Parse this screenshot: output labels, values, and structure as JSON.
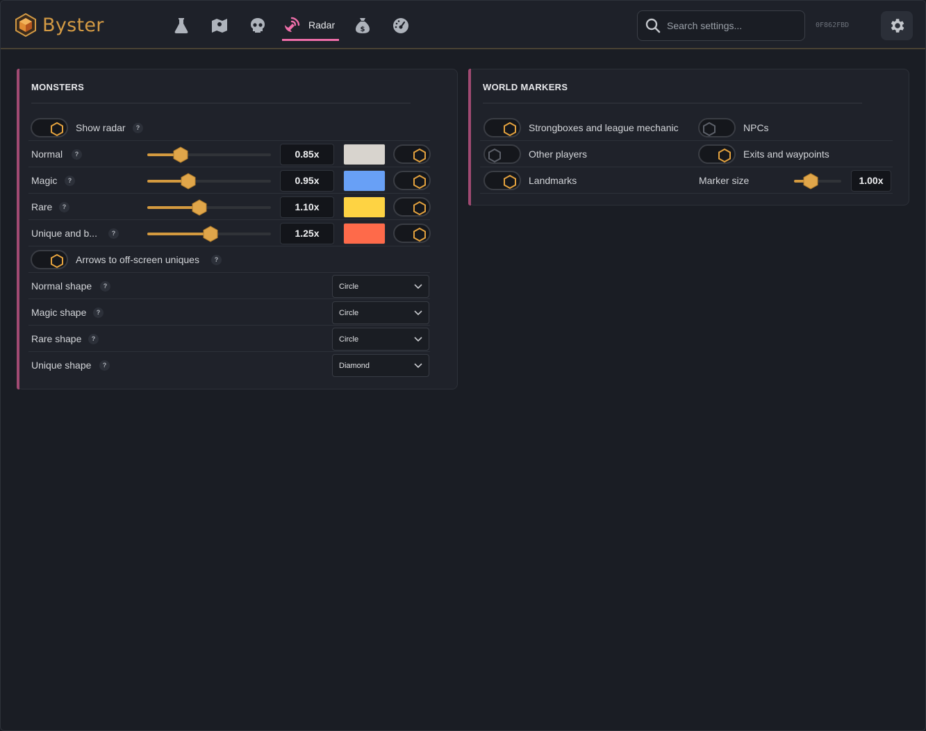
{
  "app": {
    "name": "Byster",
    "hwid": "0F862FBD"
  },
  "nav": {
    "items": [
      {
        "icon": "flask-icon",
        "label": ""
      },
      {
        "icon": "map-icon",
        "label": ""
      },
      {
        "icon": "skull-icon",
        "label": ""
      },
      {
        "icon": "radar-icon",
        "label": "Radar",
        "active": true
      },
      {
        "icon": "money-bag-icon",
        "label": ""
      },
      {
        "icon": "gauge-icon",
        "label": ""
      }
    ],
    "active_label": "Radar"
  },
  "search": {
    "placeholder": "Search settings..."
  },
  "colors": {
    "accent": "#d49a3f",
    "nav_active": "#ee6ea9",
    "panel_bar": "#a04a72"
  },
  "monsters": {
    "title": "MONSTERS",
    "show_radar": {
      "label": "Show radar",
      "enabled": true
    },
    "rarities": [
      {
        "label": "Normal",
        "scale": "0.85x",
        "slider_fraction": 0.27,
        "color": "#d8d4ce",
        "enabled": true
      },
      {
        "label": "Magic",
        "scale": "0.95x",
        "slider_fraction": 0.33,
        "color": "#68a0f6",
        "enabled": true
      },
      {
        "label": "Rare",
        "scale": "1.10x",
        "slider_fraction": 0.42,
        "color": "#fed343",
        "enabled": true
      },
      {
        "label": "Unique and b...",
        "scale": "1.25x",
        "slider_fraction": 0.51,
        "color": "#fe6a4a",
        "enabled": true
      }
    ],
    "arrows": {
      "label": "Arrows to off-screen uniques",
      "enabled": true
    },
    "shapes": [
      {
        "label": "Normal shape",
        "value": "Circle"
      },
      {
        "label": "Magic shape",
        "value": "Circle"
      },
      {
        "label": "Rare shape",
        "value": "Circle"
      },
      {
        "label": "Unique shape",
        "value": "Diamond"
      }
    ]
  },
  "world_markers": {
    "title": "WORLD MARKERS",
    "strongboxes": {
      "label": "Strongboxes and league mechanic",
      "enabled": true
    },
    "npcs": {
      "label": "NPCs",
      "enabled": false
    },
    "other_players": {
      "label": "Other players",
      "enabled": false
    },
    "exits": {
      "label": "Exits and waypoints",
      "enabled": true
    },
    "landmarks": {
      "label": "Landmarks",
      "enabled": true
    },
    "marker_size": {
      "label": "Marker size",
      "value": "1.00x",
      "slider_fraction": 0.35
    }
  },
  "help_glyph": "?"
}
